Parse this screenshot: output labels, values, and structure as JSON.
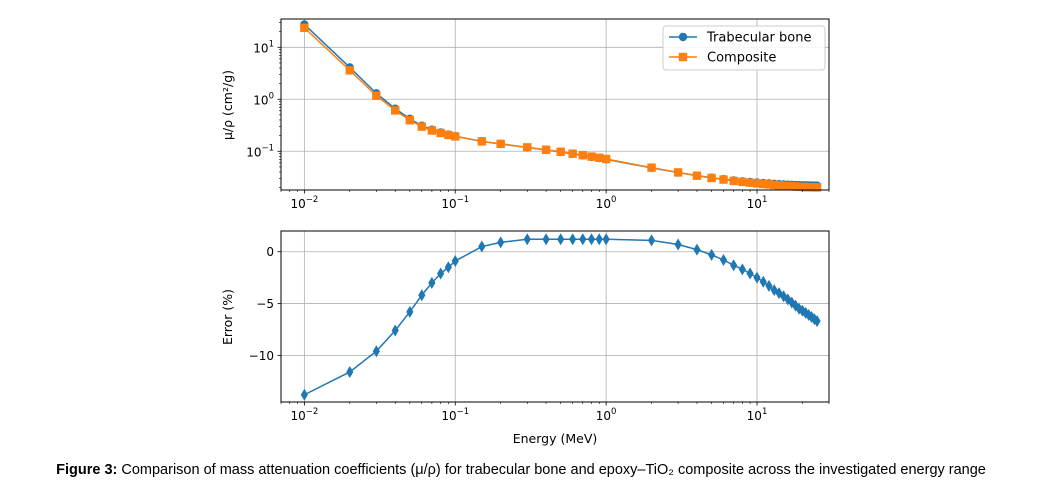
{
  "caption": {
    "label": "Figure 3:",
    "text": "Comparison of mass attenuation coefficients (μ/ρ) for trabecular bone and epoxy–TiO₂ composite across the investigated energy range"
  },
  "colors": {
    "blue": "#1f77b4",
    "orange": "#ff7f0e",
    "grid": "#b0b0b0"
  },
  "chart_data": [
    {
      "type": "line",
      "xscale": "log",
      "yscale": "log",
      "xlim": [
        0.007,
        30
      ],
      "ylim": [
        0.018,
        35
      ],
      "grid": true,
      "legend": "top-right",
      "ylabel": "μ/ρ (cm²/g)",
      "xticks": [
        0.01,
        0.1,
        1,
        10
      ],
      "xtick_labels": [
        {
          "b": "10",
          "e": "−2"
        },
        {
          "b": "10",
          "e": "−1"
        },
        {
          "b": "10",
          "e": "0"
        },
        {
          "b": "10",
          "e": "1"
        }
      ],
      "yticks": [
        0.1,
        1,
        10
      ],
      "ytick_labels": [
        {
          "b": "10",
          "e": "−1"
        },
        {
          "b": "10",
          "e": "0"
        },
        {
          "b": "10",
          "e": "1"
        }
      ],
      "x": [
        0.01,
        0.02,
        0.03,
        0.04,
        0.05,
        0.06,
        0.07,
        0.08,
        0.09,
        0.1,
        0.15,
        0.2,
        0.3,
        0.4,
        0.5,
        0.6,
        0.7,
        0.8,
        0.9,
        1.0,
        2,
        3,
        4,
        5,
        6,
        7,
        8,
        9,
        10,
        11,
        12,
        13,
        14,
        15,
        16,
        17,
        18,
        19,
        20,
        21,
        22,
        23,
        24,
        25
      ],
      "series": [
        {
          "name": "Trabecular bone",
          "marker": "circle",
          "color": "#1f77b4",
          "values": [
            27.5,
            4.1,
            1.3,
            0.66,
            0.42,
            0.31,
            0.26,
            0.23,
            0.21,
            0.195,
            0.155,
            0.138,
            0.118,
            0.106,
            0.097,
            0.089,
            0.083,
            0.078,
            0.074,
            0.07,
            0.048,
            0.039,
            0.034,
            0.031,
            0.029,
            0.0275,
            0.0265,
            0.0257,
            0.025,
            0.0245,
            0.024,
            0.0236,
            0.0233,
            0.023,
            0.0228,
            0.0226,
            0.0224,
            0.0223,
            0.0222,
            0.0221,
            0.022,
            0.0219,
            0.0219,
            0.0218
          ]
        },
        {
          "name": "Composite",
          "marker": "square",
          "color": "#ff7f0e",
          "values": [
            23.7,
            3.6,
            1.17,
            0.61,
            0.395,
            0.298,
            0.251,
            0.225,
            0.206,
            0.193,
            0.155,
            0.139,
            0.119,
            0.107,
            0.098,
            0.09,
            0.084,
            0.079,
            0.075,
            0.071,
            0.0485,
            0.0392,
            0.0339,
            0.0307,
            0.0286,
            0.0269,
            0.0258,
            0.0249,
            0.0241,
            0.0235,
            0.023,
            0.0225,
            0.0221,
            0.0218,
            0.0215,
            0.0212,
            0.021,
            0.0208,
            0.0206,
            0.0205,
            0.0204,
            0.0203,
            0.0202,
            0.0202
          ]
        }
      ]
    },
    {
      "type": "line",
      "xscale": "log",
      "xlim": [
        0.007,
        30
      ],
      "ylim": [
        -14.5,
        2.0
      ],
      "grid": true,
      "xlabel": "Energy (MeV)",
      "ylabel": "Error (%)",
      "xticks": [
        0.01,
        0.1,
        1,
        10
      ],
      "xtick_labels": [
        {
          "b": "10",
          "e": "−2"
        },
        {
          "b": "10",
          "e": "−1"
        },
        {
          "b": "10",
          "e": "0"
        },
        {
          "b": "10",
          "e": "1"
        }
      ],
      "yticks": [
        0,
        -5,
        -10
      ],
      "ytick_labels": [
        "0",
        "−5",
        "−10"
      ],
      "x": [
        0.01,
        0.02,
        0.03,
        0.04,
        0.05,
        0.06,
        0.07,
        0.08,
        0.09,
        0.1,
        0.15,
        0.2,
        0.3,
        0.4,
        0.5,
        0.6,
        0.7,
        0.8,
        0.9,
        1.0,
        2,
        3,
        4,
        5,
        6,
        7,
        8,
        9,
        10,
        11,
        12,
        13,
        14,
        15,
        16,
        17,
        18,
        19,
        20,
        21,
        22,
        23,
        24,
        25
      ],
      "series": [
        {
          "marker": "diamond",
          "color": "#1f77b4",
          "values": [
            -13.8,
            -11.6,
            -9.6,
            -7.6,
            -5.8,
            -4.2,
            -3.0,
            -2.1,
            -1.5,
            -0.9,
            0.5,
            0.9,
            1.2,
            1.2,
            1.2,
            1.2,
            1.2,
            1.2,
            1.2,
            1.2,
            1.1,
            0.7,
            0.2,
            -0.3,
            -0.8,
            -1.3,
            -1.7,
            -2.1,
            -2.5,
            -2.9,
            -3.3,
            -3.7,
            -4.0,
            -4.3,
            -4.6,
            -4.9,
            -5.2,
            -5.5,
            -5.7,
            -5.9,
            -6.1,
            -6.3,
            -6.5,
            -6.7
          ]
        }
      ]
    }
  ]
}
